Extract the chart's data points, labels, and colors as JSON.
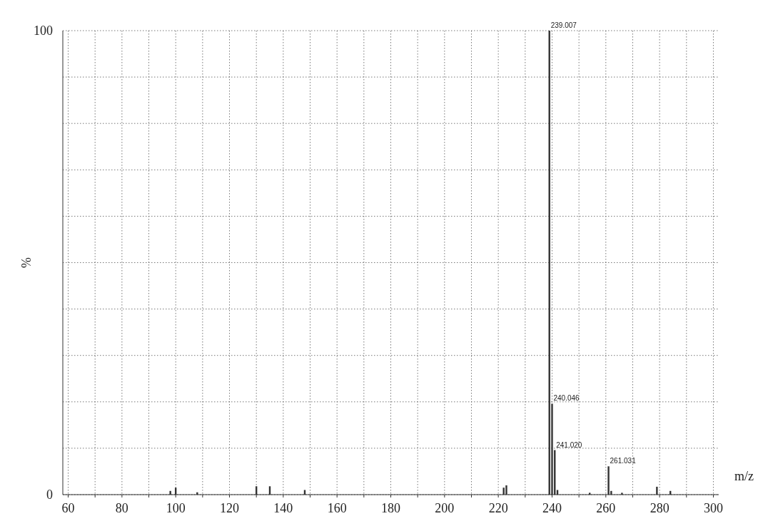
{
  "chart_data": {
    "type": "bar",
    "xlabel": "m/z",
    "ylabel": "%",
    "x": [
      98,
      100,
      108,
      130,
      135,
      148,
      222,
      223,
      239,
      240,
      241,
      242,
      254,
      261,
      262,
      266,
      279,
      284
    ],
    "values": [
      0.8,
      1.5,
      0.5,
      1.8,
      1.8,
      1.0,
      1.5,
      2.0,
      100,
      19.6,
      9.6,
      1.0,
      0.4,
      6.1,
      0.8,
      0.4,
      1.7,
      0.8
    ],
    "color": "#333333",
    "xlim": [
      58,
      302
    ],
    "xticks": [
      60,
      {
        "value": 70,
        "label": null
      },
      80,
      {
        "value": 90,
        "label": null
      },
      100,
      {
        "value": 110,
        "label": null
      },
      120,
      {
        "value": 130,
        "label": null
      },
      140,
      {
        "value": 150,
        "label": null
      },
      160,
      {
        "value": 170,
        "label": null
      },
      180,
      {
        "value": 190,
        "label": null
      },
      200,
      {
        "value": 210,
        "label": null
      },
      220,
      {
        "value": 230,
        "label": null
      },
      240,
      {
        "value": 250,
        "label": null
      },
      260,
      {
        "value": 270,
        "label": null
      },
      280,
      {
        "value": 290,
        "label": null
      },
      300
    ],
    "ylim": [
      0,
      100
    ],
    "yticks": [
      0,
      {
        "value": 10,
        "label": null
      },
      {
        "value": 20,
        "label": null
      },
      {
        "value": 30,
        "label": null
      },
      {
        "value": 40,
        "label": null
      },
      {
        "value": 50,
        "label": null
      },
      {
        "value": 60,
        "label": null
      },
      {
        "value": 70,
        "label": null
      },
      {
        "value": 80,
        "label": null
      },
      {
        "value": 90,
        "label": null
      },
      100
    ],
    "grid": true,
    "line_style": "dotted",
    "annotations": [
      {
        "text": "239.007",
        "x": 239,
        "y": 100
      },
      {
        "text": "240.046",
        "x": 240,
        "y": 19.6
      },
      {
        "text": "241.020",
        "x": 241,
        "y": 9.6
      },
      {
        "text": "261.031",
        "x": 261,
        "y": 6.1
      }
    ]
  }
}
